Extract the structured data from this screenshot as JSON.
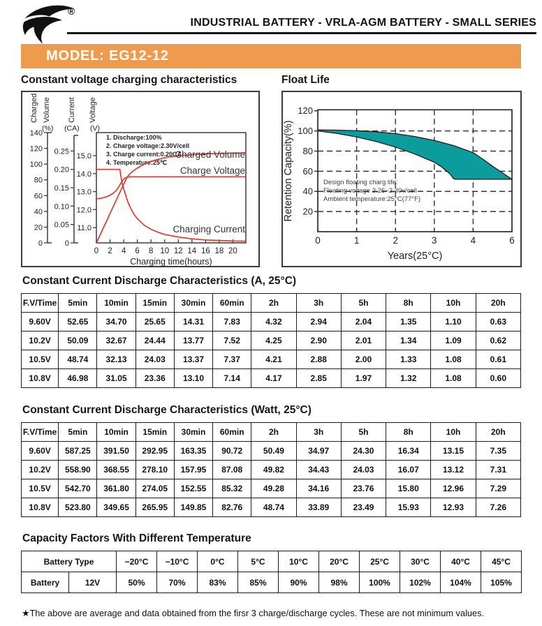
{
  "header": {
    "tagline": "INDUSTRIAL BATTERY - VRLA-AGM BATTERY - SMALL SERIES",
    "registered_mark": "®"
  },
  "banner": {
    "text": "MODEL: EG12-12",
    "bg_color": "#EF9B4D",
    "text_color": "#ffffff"
  },
  "charts": {
    "charging": {
      "title": "Constant voltage charging characteristics",
      "notes": [
        "1. Discharge:100%",
        "2. Charge voltage:2.30V/cell",
        "3. Charge current:0.20CA",
        "4. Temperature:25℃"
      ],
      "axes": {
        "volume": {
          "name": [
            "Charged",
            "Volume"
          ],
          "unit": "(%)",
          "ticks": [
            0,
            20,
            40,
            60,
            80,
            100,
            120,
            140
          ]
        },
        "current": {
          "name": [
            "Current"
          ],
          "unit": "(CA)",
          "ticks": [
            "0",
            "0.05",
            "0.10",
            "0.15",
            "0.20",
            "0.25"
          ]
        },
        "voltage": {
          "name": [
            "Voltage"
          ],
          "unit": "(V)",
          "ticks": [
            "11.0",
            "12.0",
            "13.0",
            "14.0",
            "15.0"
          ]
        },
        "x": {
          "label": "Charging time(hours)",
          "ticks": [
            0,
            2,
            4,
            6,
            8,
            10,
            12,
            14,
            16,
            18,
            20
          ]
        }
      },
      "curve_labels": [
        "Charged Volume",
        "Charge Voltage",
        "Charging Current"
      ],
      "line_color": "#E2382C"
    },
    "float_life": {
      "title": "Float Life",
      "y_axis": {
        "label": "Retention Capacity(%)",
        "ticks": [
          20,
          40,
          60,
          80,
          100,
          120
        ]
      },
      "x_axis": {
        "label": "Years(25°C)",
        "ticks": [
          0,
          1,
          2,
          3,
          4,
          6
        ]
      },
      "annotation": [
        "Design floating charg life:",
        "Floating voltage 2.26~2.30v/cell",
        "Ambient temperature:25°C(77°F)"
      ],
      "band_color": "#0D9C9E"
    }
  },
  "chart_data": [
    {
      "type": "line",
      "title": "Constant voltage charging characteristics",
      "xlabel": "Charging time(hours)",
      "x_range": [
        0,
        21.9
      ],
      "grid": false,
      "series": [
        {
          "name": "Charged Volume",
          "axis": "Charged Volume (%)",
          "range": [
            0,
            140
          ],
          "points": [
            [
              0,
              0
            ],
            [
              0.5,
              9.3
            ],
            [
              1,
              18.7
            ],
            [
              1.5,
              28
            ],
            [
              2,
              37.3
            ],
            [
              2.5,
              46.7
            ],
            [
              3,
              56
            ],
            [
              3.5,
              65.3
            ],
            [
              4,
              74.7
            ],
            [
              4.5,
              83.5
            ],
            [
              5,
              88.5
            ],
            [
              5.5,
              92
            ],
            [
              6,
              95
            ],
            [
              6.5,
              97.5
            ],
            [
              7,
              100
            ],
            [
              8,
              103.5
            ],
            [
              9,
              106
            ],
            [
              10,
              108
            ],
            [
              11,
              109.5
            ],
            [
              12,
              110.5
            ],
            [
              13,
              111.3
            ],
            [
              14,
              112
            ],
            [
              15,
              112.5
            ],
            [
              16,
              113
            ],
            [
              17,
              113.3
            ],
            [
              18,
              113.6
            ],
            [
              19,
              113.8
            ],
            [
              20,
              114
            ],
            [
              21.9,
              114.2
            ]
          ]
        },
        {
          "name": "Charge Voltage",
          "axis": "Voltage (V)",
          "range": [
            10.15,
            16.28
          ],
          "points": [
            [
              0,
              12.6
            ],
            [
              0.5,
              12.62
            ],
            [
              1,
              12.66
            ],
            [
              1.5,
              12.72
            ],
            [
              2,
              12.8
            ],
            [
              2.5,
              12.92
            ],
            [
              3,
              13.1
            ],
            [
              3.3,
              13.28
            ],
            [
              3.6,
              13.48
            ],
            [
              3.9,
              13.65
            ],
            [
              4.2,
              13.76
            ],
            [
              4.5,
              13.8
            ],
            [
              5,
              13.82
            ],
            [
              8,
              13.82
            ],
            [
              21.9,
              13.82
            ]
          ]
        },
        {
          "name": "Charging Current",
          "axis": "Current (CA)",
          "range": [
            0,
            0.3
          ],
          "points": [
            [
              0,
              0.2
            ],
            [
              3.45,
              0.2
            ],
            [
              3.55,
              0.185
            ],
            [
              3.8,
              0.16
            ],
            [
              4.2,
              0.135
            ],
            [
              4.6,
              0.112
            ],
            [
              5,
              0.095
            ],
            [
              5.5,
              0.078
            ],
            [
              6,
              0.066
            ],
            [
              7,
              0.048
            ],
            [
              8,
              0.037
            ],
            [
              9,
              0.029
            ],
            [
              10,
              0.023
            ],
            [
              12,
              0.016
            ],
            [
              14,
              0.011
            ],
            [
              16,
              0.008
            ],
            [
              18,
              0.0065
            ],
            [
              20,
              0.005
            ],
            [
              21.9,
              0.0045
            ]
          ]
        }
      ]
    },
    {
      "type": "area",
      "title": "Float Life",
      "xlabel": "Years(25°C)",
      "ylabel": "Retention Capacity(%)",
      "ylim": [
        0,
        121
      ],
      "x_ticks": [
        0,
        1,
        2,
        3,
        4,
        6
      ],
      "grid": true,
      "series": [
        {
          "name": "upper bound",
          "points": [
            [
              0,
              101
            ],
            [
              0.5,
              100.8
            ],
            [
              1,
              100.2
            ],
            [
              1.5,
              99.2
            ],
            [
              2,
              97.3
            ],
            [
              2.5,
              94.5
            ],
            [
              3,
              90.5
            ],
            [
              3.5,
              85.5
            ],
            [
              4,
              78.5
            ],
            [
              4.5,
              72
            ],
            [
              5,
              65
            ],
            [
              5.5,
              58.5
            ],
            [
              6,
              52
            ]
          ]
        },
        {
          "name": "lower bound",
          "points": [
            [
              0,
              100
            ],
            [
              0.5,
              97.5
            ],
            [
              1,
              94
            ],
            [
              1.5,
              89.5
            ],
            [
              2,
              84
            ],
            [
              2.5,
              77
            ],
            [
              3,
              69
            ],
            [
              3.2,
              64
            ],
            [
              3.4,
              57.5
            ],
            [
              3.5,
              52.5
            ],
            [
              3.55,
              52
            ],
            [
              6,
              52
            ]
          ]
        }
      ]
    }
  ],
  "tables": [
    {
      "title": "Constant Current Discharge Characteristics (A, 25°C)",
      "headers": [
        "F.V/Time",
        "5min",
        "10min",
        "15min",
        "30min",
        "60min",
        "2h",
        "3h",
        "5h",
        "8h",
        "10h",
        "20h"
      ],
      "rows": [
        [
          "9.60V",
          "52.65",
          "34.70",
          "25.65",
          "14.31",
          "7.83",
          "4.32",
          "2.94",
          "2.04",
          "1.35",
          "1.10",
          "0.63"
        ],
        [
          "10.2V",
          "50.09",
          "32.67",
          "24.44",
          "13.77",
          "7.52",
          "4.25",
          "2.90",
          "2.01",
          "1.34",
          "1.09",
          "0.62"
        ],
        [
          "10.5V",
          "48.74",
          "32.13",
          "24.03",
          "13.37",
          "7.37",
          "4.21",
          "2.88",
          "2.00",
          "1.33",
          "1.08",
          "0.61"
        ],
        [
          "10.8V",
          "46.98",
          "31.05",
          "23.36",
          "13.10",
          "7.14",
          "4.17",
          "2.85",
          "1.97",
          "1.32",
          "1.08",
          "0.60"
        ]
      ]
    },
    {
      "title": "Constant Current Discharge Characteristics (Watt, 25°C)",
      "headers": [
        "F.V/Time",
        "5min",
        "10min",
        "15min",
        "30min",
        "60min",
        "2h",
        "3h",
        "5h",
        "8h",
        "10h",
        "20h"
      ],
      "rows": [
        [
          "9.60V",
          "587.25",
          "391.50",
          "292.95",
          "163.35",
          "90.72",
          "50.49",
          "34.97",
          "24.30",
          "16.34",
          "13.15",
          "7.35"
        ],
        [
          "10.2V",
          "558.90",
          "368.55",
          "278.10",
          "157.95",
          "87.08",
          "49.82",
          "34.43",
          "24.03",
          "16.07",
          "13.12",
          "7.31"
        ],
        [
          "10.5V",
          "542.70",
          "361.80",
          "274.05",
          "152.55",
          "85.32",
          "49.28",
          "34.16",
          "23.76",
          "15.80",
          "12.96",
          "7.29"
        ],
        [
          "10.8V",
          "523.80",
          "349.65",
          "265.95",
          "149.85",
          "82.76",
          "48.74",
          "33.89",
          "23.49",
          "15.93",
          "12.93",
          "7.26"
        ]
      ]
    },
    {
      "title": "Capacity Factors With Different Temperature",
      "headers": [
        "Battery Type",
        "−20°C",
        "−10°C",
        "0°C",
        "5°C",
        "10°C",
        "20°C",
        "25°C",
        "30°C",
        "40°C",
        "45°C"
      ],
      "rows": [
        [
          "Battery",
          "12V",
          "50%",
          "70%",
          "83%",
          "85%",
          "90%",
          "98%",
          "100%",
          "102%",
          "104%",
          "105%"
        ]
      ]
    }
  ],
  "footnote": "★The above are average and data obtained from the firsr 3 charge/discharge cycles. These are not minimum values."
}
